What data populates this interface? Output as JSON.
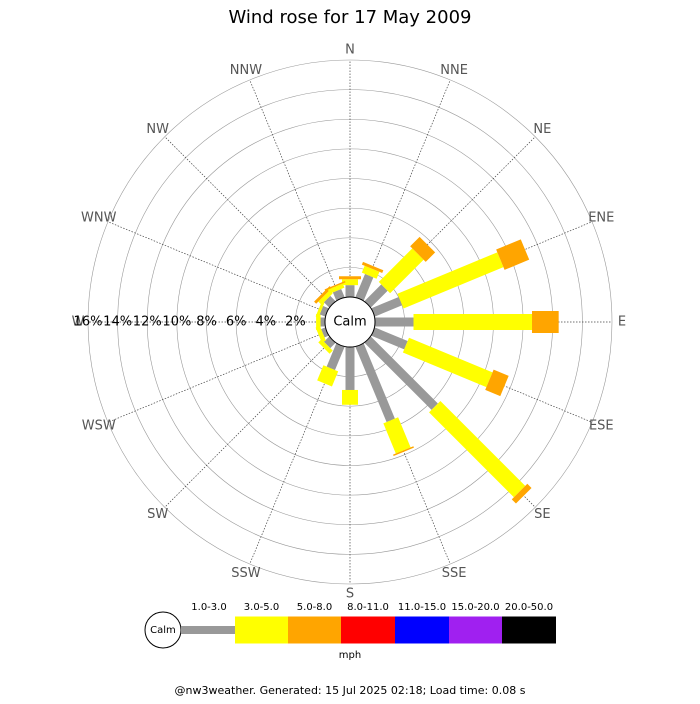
{
  "chart_data": {
    "type": "windrose",
    "title": "Wind rose for 17 May 2009",
    "directions": [
      "N",
      "NNE",
      "NE",
      "ENE",
      "E",
      "ESE",
      "SE",
      "SSE",
      "S",
      "SSW",
      "SW",
      "WSW",
      "W",
      "WNW",
      "NW",
      "NNW"
    ],
    "calm_label": "Calm",
    "unit": "mph",
    "rlim": [
      0,
      16
    ],
    "rticks": [
      {
        "value": 2,
        "label": "2%"
      },
      {
        "value": 4,
        "label": "4%"
      },
      {
        "value": 6,
        "label": "6%"
      },
      {
        "value": 8,
        "label": "8%"
      },
      {
        "value": 10,
        "label": "10%"
      },
      {
        "value": 12,
        "label": "12%"
      },
      {
        "value": 14,
        "label": "14%"
      },
      {
        "value": 16,
        "label": "16%"
      }
    ],
    "series": [
      {
        "name": "1.0-3.0",
        "color": "#999999",
        "values": [
          0.8,
          1.7,
          1.6,
          2.0,
          2.6,
          2.4,
          6.4,
          5.5,
          2.9,
          1.7,
          0.5,
          0.3,
          0.3,
          0.4,
          0.5,
          0.6
        ]
      },
      {
        "name": "3.0-5.0",
        "color": "#ffff00",
        "values": [
          0.4,
          0.5,
          3.2,
          7.3,
          8.0,
          6.1,
          8.1,
          2.2,
          1.0,
          1.1,
          0.3,
          0.3,
          0.3,
          0.2,
          0.3,
          0.3
        ]
      },
      {
        "name": "5.0-8.0",
        "color": "#ffa500",
        "values": [
          0.2,
          0.2,
          0.9,
          1.8,
          1.8,
          1.1,
          0.4,
          0.1,
          0,
          0,
          0,
          0,
          0,
          0,
          0.2,
          0.1
        ]
      },
      {
        "name": "8.0-11.0",
        "color": "#ff0000",
        "values": [
          0,
          0,
          0,
          0,
          0,
          0,
          0,
          0,
          0,
          0,
          0,
          0,
          0,
          0,
          0,
          0
        ]
      },
      {
        "name": "11.0-15.0",
        "color": "#0000ff",
        "values": [
          0,
          0,
          0,
          0,
          0,
          0,
          0,
          0,
          0,
          0,
          0,
          0,
          0,
          0,
          0,
          0
        ]
      },
      {
        "name": "15.0-20.0",
        "color": "#a020f0",
        "values": [
          0,
          0,
          0,
          0,
          0,
          0,
          0,
          0,
          0,
          0,
          0,
          0,
          0,
          0,
          0,
          0
        ]
      },
      {
        "name": "20.0-50.0",
        "color": "#000000",
        "values": [
          0,
          0,
          0,
          0,
          0,
          0,
          0,
          0,
          0,
          0,
          0,
          0,
          0,
          0,
          0,
          0
        ]
      }
    ],
    "footer": "@nw3weather. Generated: 15 Jul 2025 02:18; Load time: 0.08 s"
  }
}
